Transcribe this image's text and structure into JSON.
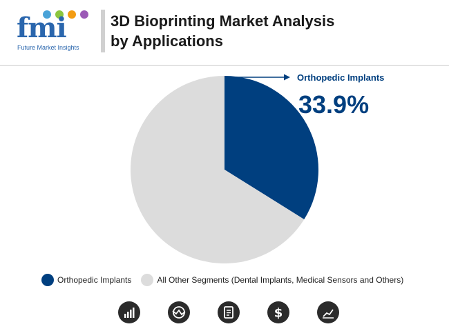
{
  "header": {
    "logo_text": "fmi",
    "logo_subtitle": "Future Market Insights",
    "title_line1": "3D Bioprinting Market Analysis",
    "title_line2": "by Applications"
  },
  "chart_data": {
    "type": "pie",
    "slices": [
      {
        "label": "Orthopedic Implants",
        "value": 33.9,
        "color": "#003f7f"
      },
      {
        "label": "All Other Segments (Dental Implants, Medical Sensors and Others)",
        "value": 66.1,
        "color": "#dcdcdc"
      }
    ],
    "annotation": {
      "label": "Orthopedic Implants",
      "value_text": "33.9%"
    }
  },
  "legend": [
    {
      "label": "Orthopedic Implants",
      "color": "#003f7f"
    },
    {
      "label": "All Other Segments (Dental Implants, Medical Sensors and Others)",
      "color": "#dcdcdc"
    }
  ],
  "footer_icons": [
    "bar-chart-icon",
    "trend-globe-icon",
    "report-icon",
    "dollar-icon",
    "line-chart-icon"
  ],
  "colors": {
    "accent": "#003f7f",
    "other": "#dcdcdc",
    "brand": "#2a66ad"
  }
}
